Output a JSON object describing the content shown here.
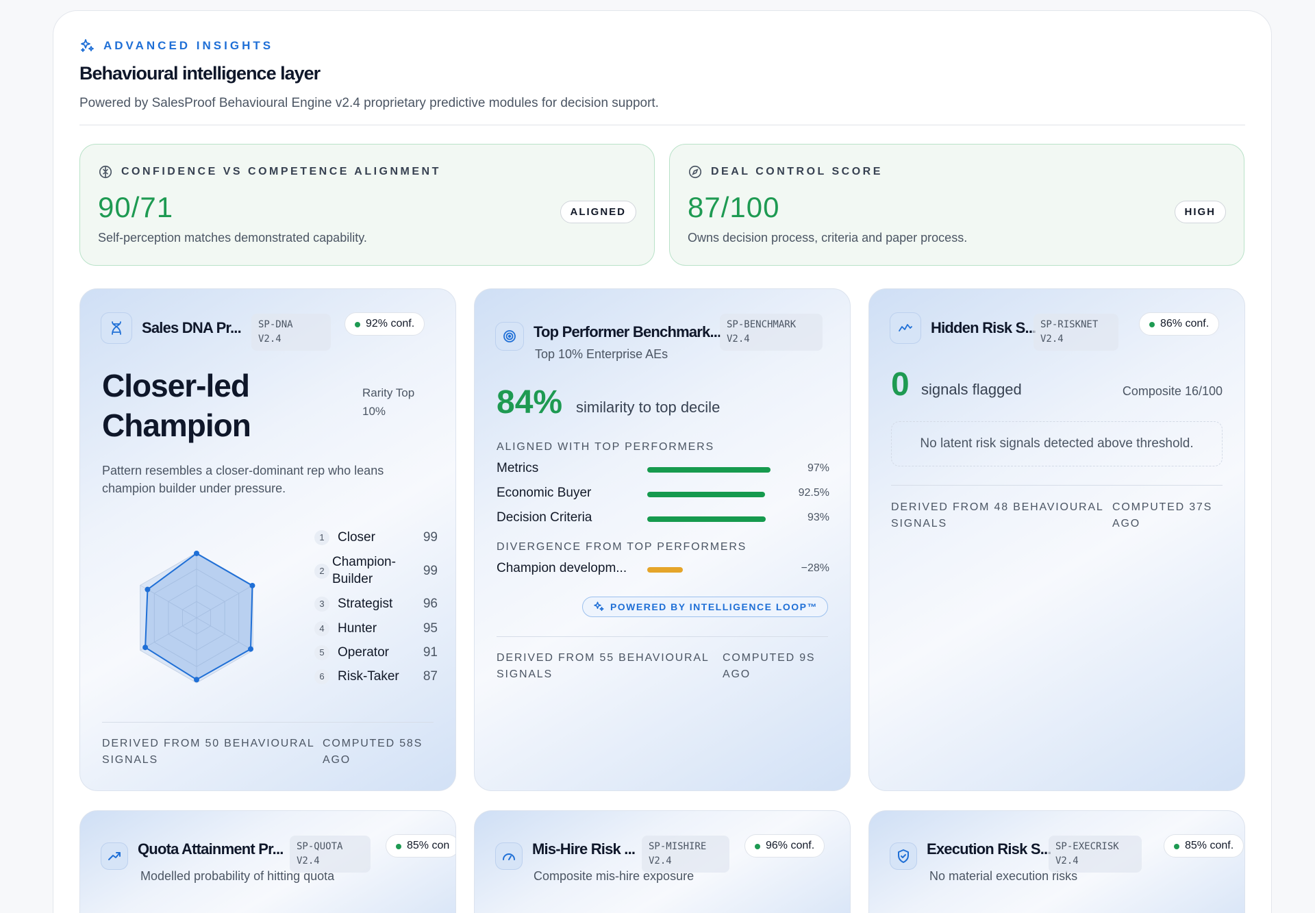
{
  "header": {
    "eyebrow": "ADVANCED INSIGHTS",
    "title": "Behavioural intelligence layer",
    "subtitle": "Powered by SalesProof Behavioural Engine v2.4 proprietary predictive modules for decision support."
  },
  "metrics": [
    {
      "label": "CONFIDENCE VS COMPETENCE ALIGNMENT",
      "value": "90/71",
      "description": "Self-perception matches demonstrated capability.",
      "badge": "ALIGNED",
      "icon": "brain-icon"
    },
    {
      "label": "DEAL CONTROL SCORE",
      "value": "87/100",
      "description": "Owns decision process, criteria and paper process.",
      "badge": "HIGH",
      "icon": "compass-icon"
    }
  ],
  "colors": {
    "accent": "#1f6fd6",
    "positive": "#1e9a52",
    "warning": "#e5a52a"
  },
  "cards": {
    "sales_dna": {
      "name": "Sales DNA Pr...",
      "code_line1": "SP-DNA",
      "code_line2": "V2.4",
      "confidence": "92% conf.",
      "archetype_line1": "Closer-led",
      "archetype_line2": "Champion",
      "rarity_line1": "Rarity Top",
      "rarity_line2": "10%",
      "description_line1": "Pattern resembles a closer-dominant rep who leans",
      "description_line2": "champion builder under pressure.",
      "traits": [
        {
          "rank": "1",
          "name": "Closer",
          "score": "99"
        },
        {
          "rank": "2",
          "name": "Champion-",
          "name2": "Builder",
          "score": "99"
        },
        {
          "rank": "3",
          "name": "Strategist",
          "score": "96"
        },
        {
          "rank": "4",
          "name": "Hunter",
          "score": "95"
        },
        {
          "rank": "5",
          "name": "Operator",
          "score": "91"
        },
        {
          "rank": "6",
          "name": "Risk-Taker",
          "score": "87"
        }
      ],
      "footer_left_1": "DERIVED FROM 50 BEHAVIOURAL",
      "footer_left_2": "SIGNALS",
      "footer_right_1": "COMPUTED 58S",
      "footer_right_2": "AGO"
    },
    "benchmark": {
      "name": "Top Performer Benchmark...",
      "code_line1": "SP-BENCHMARK",
      "code_line2": "V2.4",
      "subtitle": "Top 10% Enterprise AEs",
      "similarity_value": "84%",
      "similarity_label": "similarity to top decile",
      "aligned_title": "ALIGNED WITH TOP PERFORMERS",
      "aligned": [
        {
          "label": "Metrics",
          "value": "97%",
          "pct": 97
        },
        {
          "label": "Economic Buyer",
          "value": "92.5%",
          "pct": 92.5
        },
        {
          "label": "Decision Criteria",
          "value": "93%",
          "pct": 93
        }
      ],
      "divergence_title": "DIVERGENCE FROM TOP PERFORMERS",
      "divergence": [
        {
          "label": "Champion developm...",
          "value": "−28%",
          "pct": 28
        }
      ],
      "powered_by": "POWERED BY INTELLIGENCE LOOP™",
      "footer_left_1": "DERIVED FROM 55 BEHAVIOURAL",
      "footer_left_2": "SIGNALS",
      "footer_right_1": "COMPUTED 9S",
      "footer_right_2": "AGO"
    },
    "risk": {
      "name": "Hidden Risk S...",
      "code_line1": "SP-RISKNET",
      "code_line2": "V2.4",
      "confidence": "86% conf.",
      "count": "0",
      "count_label": "signals flagged",
      "composite": "Composite 16/100",
      "notice": "No latent risk signals detected above threshold.",
      "footer_left_1": "DERIVED FROM 48 BEHAVIOURAL",
      "footer_left_2": "SIGNALS",
      "footer_right_1": "COMPUTED 37S",
      "footer_right_2": "AGO"
    },
    "quota": {
      "name": "Quota Attainment Pr...",
      "code_line1": "SP-QUOTA",
      "code_line2": "V2.4",
      "confidence": "85% con",
      "subtitle": "Modelled probability of hitting quota"
    },
    "mishire": {
      "name": "Mis-Hire Risk ...",
      "code_line1": "SP-MISHIRE",
      "code_line2": "V2.4",
      "confidence": "96% conf.",
      "subtitle": "Composite mis-hire exposure"
    },
    "execution": {
      "name": "Execution Risk S...",
      "code_line1": "SP-EXECRISK",
      "code_line2": "V2.4",
      "confidence": "85% conf.",
      "subtitle": "No material execution risks"
    }
  }
}
